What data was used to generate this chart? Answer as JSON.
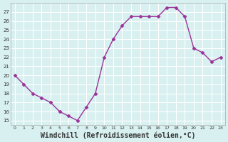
{
  "x": [
    0,
    1,
    2,
    3,
    4,
    5,
    6,
    7,
    8,
    9,
    10,
    11,
    12,
    13,
    14,
    15,
    16,
    17,
    18,
    19,
    20,
    21,
    22,
    23
  ],
  "y": [
    20,
    19,
    18,
    17.5,
    17,
    16,
    15.5,
    15,
    16.5,
    18,
    22,
    24,
    25.5,
    26.5,
    26.5,
    26.5,
    26.5,
    27.5,
    27.5,
    26.5,
    23,
    22.5,
    21.5,
    22
  ],
  "line_color": "#993399",
  "marker": "D",
  "marker_size": 2.5,
  "bg_color": "#d8f0f0",
  "grid_color": "#ffffff",
  "xlabel": "Windchill (Refroidissement éolien,°C)",
  "xlabel_fontsize": 7,
  "yticks": [
    15,
    16,
    17,
    18,
    19,
    20,
    21,
    22,
    23,
    24,
    25,
    26,
    27
  ],
  "xticks": [
    0,
    1,
    2,
    3,
    4,
    5,
    6,
    7,
    8,
    9,
    10,
    11,
    12,
    13,
    14,
    15,
    16,
    17,
    18,
    19,
    20,
    21,
    22,
    23
  ],
  "xlim": [
    -0.5,
    23.5
  ],
  "ylim": [
    14.5,
    28.0
  ]
}
